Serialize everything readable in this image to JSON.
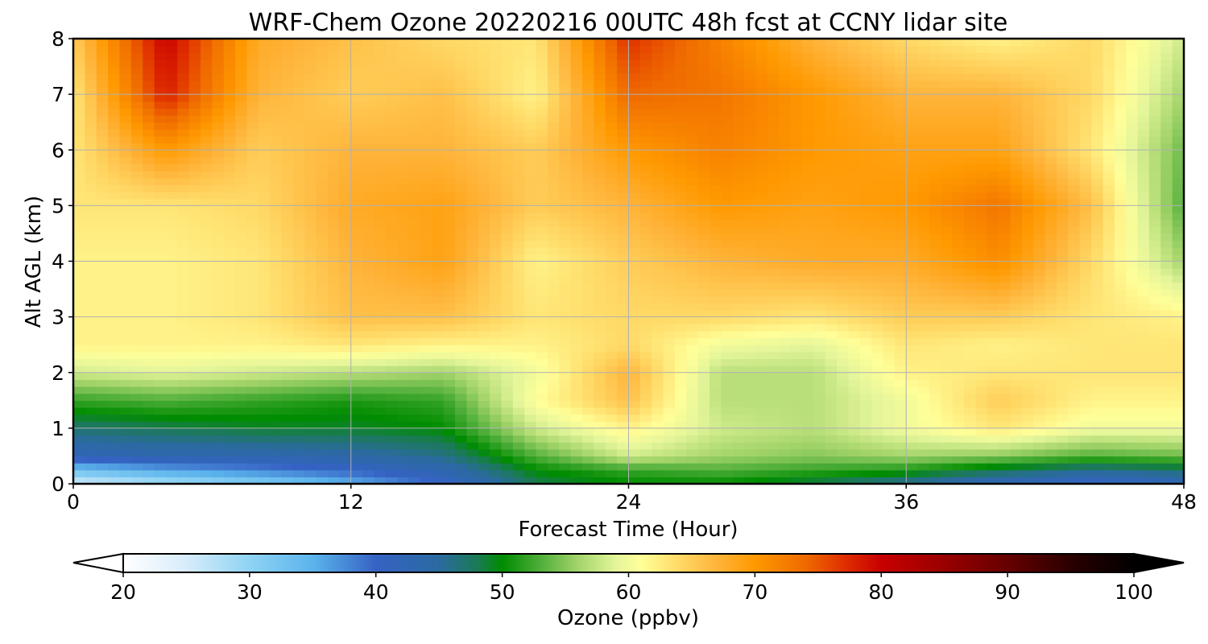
{
  "chart_data": {
    "type": "heatmap",
    "title": "WRF-Chem Ozone  20220216 00UTC 48h fcst at CCNY lidar site",
    "xlabel": "Forecast Time (Hour)",
    "ylabel": "Alt AGL (km)",
    "xlim": [
      0,
      48
    ],
    "ylim": [
      0,
      8
    ],
    "xticks": [
      0,
      12,
      24,
      36,
      48
    ],
    "yticks": [
      0,
      1,
      2,
      3,
      4,
      5,
      6,
      7,
      8
    ],
    "grid": true,
    "x": [
      0,
      4,
      8,
      12,
      16,
      20,
      24,
      28,
      32,
      36,
      40,
      44,
      48
    ],
    "y": [
      0,
      0.25,
      0.5,
      1,
      1.5,
      2,
      2.5,
      3,
      4,
      5,
      6,
      7,
      8
    ],
    "z": [
      [
        25,
        28,
        31,
        35,
        40,
        48,
        50,
        50,
        48,
        45,
        42,
        40,
        42
      ],
      [
        33,
        36,
        38,
        40,
        43,
        50,
        52,
        53,
        52,
        51,
        48,
        46,
        47
      ],
      [
        42,
        43,
        43,
        44,
        46,
        53,
        58,
        56,
        55,
        56,
        55,
        53,
        54
      ],
      [
        47,
        48,
        49,
        49,
        50,
        58,
        62,
        58,
        57,
        60,
        63,
        60,
        60
      ],
      [
        52,
        53,
        52,
        51,
        52,
        61,
        66,
        57,
        57,
        60,
        65,
        62,
        62
      ],
      [
        58,
        59,
        58,
        57,
        56,
        60,
        67,
        57,
        57,
        62,
        63,
        63,
        63
      ],
      [
        62,
        62,
        62,
        63,
        62,
        62,
        64,
        60,
        59,
        63,
        62,
        63,
        63
      ],
      [
        62,
        62,
        63,
        66,
        66,
        63,
        64,
        64,
        63,
        65,
        65,
        63,
        62
      ],
      [
        62,
        62,
        63,
        67,
        69,
        62,
        65,
        67,
        68,
        68,
        71,
        64,
        56
      ],
      [
        63,
        63,
        64,
        68,
        69,
        65,
        67,
        70,
        69,
        70,
        73,
        66,
        53
      ],
      [
        63,
        70,
        65,
        67,
        67,
        65,
        70,
        72,
        70,
        69,
        69,
        63,
        54
      ],
      [
        63,
        78,
        67,
        65,
        66,
        62,
        74,
        73,
        70,
        67,
        67,
        64,
        56
      ],
      [
        65,
        80,
        68,
        66,
        64,
        63,
        77,
        72,
        67,
        64,
        62,
        64,
        58
      ]
    ],
    "colorbar": {
      "label": "Ozone  (ppbv)",
      "min": 20,
      "max": 100,
      "ticks": [
        20,
        30,
        40,
        50,
        60,
        70,
        80,
        90,
        100
      ],
      "extend": "both",
      "colors": [
        [
          20,
          "#ffffff"
        ],
        [
          25,
          "#d7ecfa"
        ],
        [
          30,
          "#8fd3f4"
        ],
        [
          35,
          "#5bb4ec"
        ],
        [
          40,
          "#3562c4"
        ],
        [
          45,
          "#2b6aa0"
        ],
        [
          48,
          "#1b7a56"
        ],
        [
          50,
          "#008c00"
        ],
        [
          53,
          "#4fae3a"
        ],
        [
          56,
          "#a3d46a"
        ],
        [
          59,
          "#e4f59a"
        ],
        [
          61,
          "#ffff99"
        ],
        [
          64,
          "#ffd966"
        ],
        [
          67,
          "#ffb43a"
        ],
        [
          70,
          "#ff9900"
        ],
        [
          74,
          "#ef6a00"
        ],
        [
          77,
          "#e03000"
        ],
        [
          80,
          "#c80000"
        ],
        [
          85,
          "#990000"
        ],
        [
          90,
          "#660000"
        ],
        [
          95,
          "#2a0000"
        ],
        [
          100,
          "#000000"
        ]
      ]
    }
  }
}
